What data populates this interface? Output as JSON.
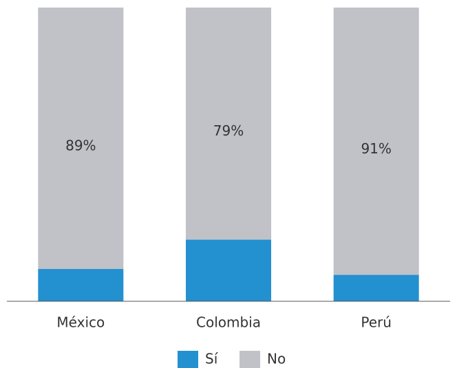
{
  "chart_data": {
    "type": "stacked_bar",
    "categories": [
      "México",
      "Colombia",
      "Perú"
    ],
    "series": [
      {
        "name": "Sí",
        "color": "#2390d0",
        "values": [
          11,
          21,
          9
        ]
      },
      {
        "name": "No",
        "color": "#c0c2c8",
        "values": [
          89,
          79,
          91
        ],
        "value_labels": [
          "89%",
          "79%",
          "91%"
        ]
      }
    ],
    "ylim": [
      0,
      100
    ]
  }
}
